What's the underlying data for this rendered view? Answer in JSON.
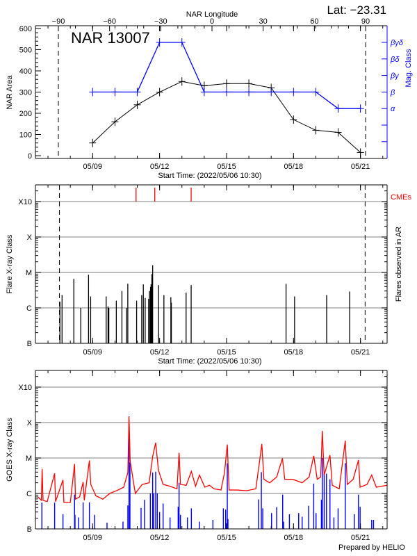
{
  "header": {
    "lat_label": "Lat: −23.31"
  },
  "footer": {
    "credit": "Prepared by HELIO"
  },
  "chart_data": [
    {
      "type": "line",
      "title": "NAR 13007",
      "xlabel": "Start Time: (2022/05/06 10:30)",
      "x_start": "2022-05-06T10:30",
      "x_end": "2022-05-22T04:40",
      "x_ticks": [
        "05/09",
        "05/12",
        "05/15",
        "05/18",
        "05/21"
      ],
      "top_axis": {
        "label": "NAR Longitude",
        "ticks": [
          -90,
          -60,
          -30,
          0,
          30,
          60,
          90
        ]
      },
      "limb_longitudes": [
        -90,
        90
      ],
      "ylabel": "NAR Area",
      "ylim": [
        0,
        600
      ],
      "yticks": [
        0,
        100,
        200,
        300,
        400,
        500,
        600
      ],
      "y2label": "Mag. Class",
      "y2_classes": [
        "α",
        "β",
        "βγ",
        "βδ",
        "βγδ"
      ],
      "dates": [
        "2022-05-09T00:00",
        "2022-05-10T00:00",
        "2022-05-11T00:00",
        "2022-05-12T00:00",
        "2022-05-13T00:00",
        "2022-05-14T00:00",
        "2022-05-15T00:00",
        "2022-05-16T00:00",
        "2022-05-17T00:00",
        "2022-05-18T00:00",
        "2022-05-19T00:00",
        "2022-05-20T00:00",
        "2022-05-21T00:00"
      ],
      "series": [
        {
          "axis": "left",
          "color": "#000000",
          "values": [
            60,
            160,
            240,
            300,
            350,
            330,
            340,
            340,
            320,
            170,
            120,
            110,
            15
          ]
        },
        {
          "axis": "right",
          "color": "#0000ff",
          "values": [
            "β",
            "β",
            "β",
            "βγδ",
            "βγδ",
            "β",
            "β",
            "β",
            "β",
            "β",
            "β",
            "α",
            "α"
          ]
        }
      ],
      "grid": false
    },
    {
      "type": "bar",
      "xlabel": "Start Time: (2022/05/06 10:30)",
      "x_ticks": [
        "05/09",
        "05/12",
        "05/15",
        "05/18",
        "05/21"
      ],
      "ylabel": "Flare X-ray Class",
      "y2label": "Flares observed in AR",
      "yscale": "log",
      "yticks": [
        "B",
        "C",
        "M",
        "X",
        "X10"
      ],
      "grid": true,
      "bar_color": "#000000",
      "flares": [
        {
          "time": "2022-05-07T12:49",
          "class": "C1.5"
        },
        {
          "time": "2022-05-07T15:07",
          "class": "C2.3"
        },
        {
          "time": "2022-05-08T03:46",
          "class": "C6.6"
        },
        {
          "time": "2022-05-08T11:14",
          "class": "C1.0"
        },
        {
          "time": "2022-05-08T19:35",
          "class": "C8.6"
        },
        {
          "time": "2022-05-08T21:52",
          "class": "C2.1"
        },
        {
          "time": "2022-05-09T14:33",
          "class": "C2.1"
        },
        {
          "time": "2022-05-09T16:34",
          "class": "C1.1"
        },
        {
          "time": "2022-05-09T17:25",
          "class": "C1.0"
        },
        {
          "time": "2022-05-10T01:28",
          "class": "C1.6"
        },
        {
          "time": "2022-05-10T07:30",
          "class": "C3.0"
        },
        {
          "time": "2022-05-10T12:23",
          "class": "C1.0"
        },
        {
          "time": "2022-05-10T13:49",
          "class": "C4.8"
        },
        {
          "time": "2022-05-10T23:18",
          "class": "C1.6"
        },
        {
          "time": "2022-05-11T04:46",
          "class": "C2.3"
        },
        {
          "time": "2022-05-11T06:30",
          "class": "C4.6"
        },
        {
          "time": "2022-05-11T08:31",
          "class": "C1.9"
        },
        {
          "time": "2022-05-11T12:15",
          "class": "C1.8"
        },
        {
          "time": "2022-05-11T13:06",
          "class": "C3.0"
        },
        {
          "time": "2022-05-11T14:15",
          "class": "C3.9"
        },
        {
          "time": "2022-05-11T14:50",
          "class": "C4.6"
        },
        {
          "time": "2022-05-11T15:42",
          "class": "C9.0"
        },
        {
          "time": "2022-05-11T16:33",
          "class": "M1.6"
        },
        {
          "time": "2022-05-11T22:52",
          "class": "C4.4"
        },
        {
          "time": "2022-05-12T04:38",
          "class": "C2.3"
        },
        {
          "time": "2022-05-12T12:06",
          "class": "C2.0"
        },
        {
          "time": "2022-05-12T12:40",
          "class": "C1.4"
        },
        {
          "time": "2022-05-13T04:29",
          "class": "C2.7"
        },
        {
          "time": "2022-05-13T09:56",
          "class": "C4.4"
        },
        {
          "time": "2022-05-17T15:59",
          "class": "C4.8"
        },
        {
          "time": "2022-05-18T01:10",
          "class": "C2.1"
        },
        {
          "time": "2022-05-19T11:40",
          "class": "C2.3"
        },
        {
          "time": "2022-05-20T12:23",
          "class": "C2.9"
        }
      ],
      "cmes": {
        "label": "CMEs",
        "color": "#ff0000",
        "times": [
          "2022-05-10T22:42",
          "2022-05-11T18:49",
          "2022-05-13T09:56"
        ]
      },
      "limb_times": [
        "2022-05-07T12:20",
        "2022-05-21T05:00"
      ]
    },
    {
      "type": "line",
      "x_ticks": [
        "05/09",
        "05/12",
        "05/15",
        "05/18",
        "05/21"
      ],
      "ylabel": "GOES X-ray Class",
      "yscale": "log",
      "yticks": [
        "B",
        "C",
        "M",
        "X",
        "X10"
      ],
      "grid": true,
      "series": [
        {
          "color": "#ff0000",
          "points": [
            [
              "2022-05-06T13:11",
              8e-07
            ],
            [
              "2022-05-06T16:55",
              6.4e-07
            ],
            [
              "2022-05-06T17:40",
              4.9e-06
            ],
            [
              "2022-05-06T18:40",
              6.4e-07
            ],
            [
              "2022-05-06T23:10",
              5.9e-07
            ],
            [
              "2022-05-07T07:08",
              3.7e-06
            ],
            [
              "2022-05-07T08:08",
              5.9e-07
            ],
            [
              "2022-05-07T16:06",
              2.4e-06
            ],
            [
              "2022-05-07T17:05",
              5.6e-07
            ],
            [
              "2022-05-08T00:04",
              5.6e-07
            ],
            [
              "2022-05-08T04:34",
              6.8e-06
            ],
            [
              "2022-05-08T05:34",
              6.9e-07
            ],
            [
              "2022-05-08T10:02",
              8e-07
            ],
            [
              "2022-05-08T13:47",
              2.1e-06
            ],
            [
              "2022-05-08T15:01",
              6.4e-07
            ],
            [
              "2022-05-08T20:31",
              8.5e-06
            ],
            [
              "2022-05-08T22:00",
              1.8e-06
            ],
            [
              "2022-05-09T03:29",
              8.6e-07
            ],
            [
              "2022-05-09T10:58",
              6.9e-07
            ],
            [
              "2022-05-09T18:26",
              1e-06
            ],
            [
              "2022-05-10T01:55",
              1.2e-06
            ],
            [
              "2022-05-10T09:23",
              1.5e-06
            ],
            [
              "2022-05-10T13:52",
              3.9e-06
            ],
            [
              "2022-05-10T15:07",
              0.00015
            ],
            [
              "2022-05-10T16:22",
              8.2e-06
            ],
            [
              "2022-05-10T21:52",
              1e-06
            ],
            [
              "2022-05-11T05:20",
              1.8e-06
            ],
            [
              "2022-05-11T12:49",
              2e-06
            ],
            [
              "2022-05-11T16:33",
              1.1e-05
            ],
            [
              "2022-05-11T19:48",
              2.7e-05
            ],
            [
              "2022-05-11T22:47",
              4.5e-06
            ],
            [
              "2022-05-12T03:46",
              1.8e-06
            ],
            [
              "2022-05-12T11:14",
              1.6e-06
            ],
            [
              "2022-05-12T18:43",
              1.35e-06
            ],
            [
              "2022-05-12T20:57",
              1.4e-05
            ],
            [
              "2022-05-12T22:28",
              1.8e-06
            ],
            [
              "2022-05-13T04:41",
              1.7e-06
            ],
            [
              "2022-05-13T10:10",
              4.2e-06
            ],
            [
              "2022-05-13T14:39",
              1.6e-06
            ],
            [
              "2022-05-13T18:53",
              3.3e-06
            ],
            [
              "2022-05-14T00:37",
              1.5e-06
            ],
            [
              "2022-05-14T05:37",
              1.7e-06
            ],
            [
              "2022-05-14T10:35",
              1.35e-06
            ],
            [
              "2022-05-14T18:04",
              1.25e-06
            ],
            [
              "2022-05-14T21:49",
              3.9e-06
            ],
            [
              "2022-05-15T00:48",
              2.4e-05
            ],
            [
              "2022-05-15T02:47",
              1.25e-06
            ],
            [
              "2022-05-15T11:31",
              1.25e-06
            ],
            [
              "2022-05-15T21:29",
              1.2e-06
            ],
            [
              "2022-05-16T07:28",
              1.35e-06
            ],
            [
              "2022-05-16T10:42",
              5.6e-06
            ],
            [
              "2022-05-16T13:56",
              2.5e-05
            ],
            [
              "2022-05-16T16:10",
              2.5e-06
            ],
            [
              "2022-05-16T22:25",
              2e-06
            ],
            [
              "2022-05-17T05:53",
              2.9e-06
            ],
            [
              "2022-05-17T12:07",
              9.8e-06
            ],
            [
              "2022-05-17T14:37",
              2.5e-06
            ],
            [
              "2022-05-17T23:20",
              2.5e-06
            ],
            [
              "2022-05-18T09:18",
              2e-06
            ],
            [
              "2022-05-18T16:47",
              2.9e-06
            ],
            [
              "2022-05-18T21:46",
              1.15e-05
            ],
            [
              "2022-05-19T01:30",
              2.5e-06
            ],
            [
              "2022-05-19T05:14",
              2.9e-06
            ],
            [
              "2022-05-19T06:59",
              5.8e-05
            ],
            [
              "2022-05-19T08:58",
              3.3e-06
            ],
            [
              "2022-05-19T15:12",
              1.2e-05
            ],
            [
              "2022-05-19T17:41",
              1.7e-06
            ],
            [
              "2022-05-20T01:10",
              1.35e-06
            ],
            [
              "2022-05-20T07:39",
              3.1e-05
            ],
            [
              "2022-05-20T09:53",
              1.8e-06
            ],
            [
              "2022-05-20T16:07",
              2.5e-06
            ],
            [
              "2022-05-20T21:52",
              8.7e-06
            ],
            [
              "2022-05-20T23:37",
              1.5e-06
            ],
            [
              "2022-05-21T07:05",
              1.8e-06
            ],
            [
              "2022-05-21T12:04",
              3.3e-06
            ],
            [
              "2022-05-21T17:02",
              1.5e-06
            ],
            [
              "2022-05-22T04:30",
              1.7e-06
            ]
          ]
        },
        {
          "color": "#0000ff",
          "points": [
            [
              "2022-05-06T17:25",
              5.5e-07
            ],
            [
              "2022-05-07T07:08",
              5.5e-07
            ],
            [
              "2022-05-07T16:06",
              2.6e-07
            ],
            [
              "2022-05-08T04:34",
              9.3e-07
            ],
            [
              "2022-05-08T05:04",
              2.5e-07
            ],
            [
              "2022-05-08T08:48",
              2.1e-07
            ],
            [
              "2022-05-08T13:47",
              5.6e-07
            ],
            [
              "2022-05-08T20:31",
              5.6e-07
            ],
            [
              "2022-05-09T02:00",
              2.5e-07
            ],
            [
              "2022-05-09T15:27",
              1.5e-07
            ],
            [
              "2022-05-10T08:38",
              1.6e-07
            ],
            [
              "2022-05-10T13:52",
              4.6e-07
            ],
            [
              "2022-05-10T15:07",
              4.5e-05
            ],
            [
              "2022-05-10T16:08",
              7.5e-06
            ],
            [
              "2022-05-11T04:05",
              3.9e-07
            ],
            [
              "2022-05-11T07:49",
              6.6e-07
            ],
            [
              "2022-05-11T14:04",
              1e-06
            ],
            [
              "2022-05-11T16:33",
              3.9e-06
            ],
            [
              "2022-05-11T17:47",
              1e-06
            ],
            [
              "2022-05-11T19:48",
              4.1e-06
            ],
            [
              "2022-05-11T21:32",
              1e-06
            ],
            [
              "2022-05-12T00:01",
              3e-07
            ],
            [
              "2022-05-12T03:46",
              5.2e-07
            ],
            [
              "2022-05-12T11:14",
              2.1e-07
            ],
            [
              "2022-05-12T19:58",
              4.2e-07
            ],
            [
              "2022-05-12T20:57",
              2e-06
            ],
            [
              "2022-05-12T22:28",
              2.5e-07
            ],
            [
              "2022-05-13T05:56",
              2.1e-07
            ],
            [
              "2022-05-13T10:10",
              3.8e-07
            ],
            [
              "2022-05-13T18:53",
              1.6e-07
            ],
            [
              "2022-05-14T09:20",
              1.8e-07
            ],
            [
              "2022-05-14T20:34",
              3.8e-07
            ],
            [
              "2022-05-14T23:02",
              3.5e-07
            ],
            [
              "2022-05-15T00:48",
              7.1e-06
            ],
            [
              "2022-05-15T01:32",
              1.9e-07
            ],
            [
              "2022-05-16T10:26",
              6.8e-07
            ],
            [
              "2022-05-16T13:26",
              4e-06
            ],
            [
              "2022-05-16T14:56",
              3.8e-07
            ],
            [
              "2022-05-17T00:24",
              2.8e-07
            ],
            [
              "2022-05-17T05:53",
              4.1e-07
            ],
            [
              "2022-05-17T12:22",
              9.3e-07
            ],
            [
              "2022-05-17T13:22",
              1.6e-07
            ],
            [
              "2022-05-17T19:35",
              2.6e-07
            ],
            [
              "2022-05-18T05:34",
              2.8e-07
            ],
            [
              "2022-05-18T09:18",
              2.2e-07
            ],
            [
              "2022-05-18T16:16",
              4.5e-07
            ],
            [
              "2022-05-18T21:46",
              1.9e-06
            ],
            [
              "2022-05-19T00:14",
              2.8e-07
            ],
            [
              "2022-05-19T05:59",
              6.6e-07
            ],
            [
              "2022-05-19T06:59",
              1e-05
            ],
            [
              "2022-05-19T08:58",
              3.6e-06
            ],
            [
              "2022-05-19T11:28",
              3.6e-06
            ],
            [
              "2022-05-19T15:12",
              2.5e-06
            ],
            [
              "2022-05-19T19:26",
              2.1e-07
            ],
            [
              "2022-05-19T23:56",
              3.8e-07
            ],
            [
              "2022-05-20T07:39",
              7.1e-06
            ],
            [
              "2022-05-20T17:22",
              2.6e-07
            ],
            [
              "2022-05-20T21:52",
              9.3e-07
            ],
            [
              "2022-05-20T23:37",
              4.2e-07
            ],
            [
              "2022-05-21T12:04",
              1.8e-07
            ],
            [
              "2022-05-21T14:04",
              1.8e-07
            ]
          ]
        }
      ]
    }
  ]
}
